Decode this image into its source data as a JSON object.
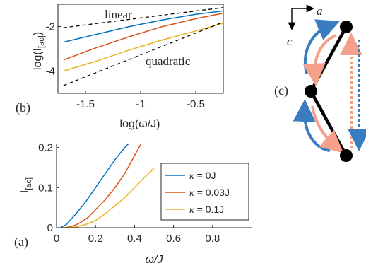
{
  "panels": {
    "b": {
      "label": "(b)",
      "annotations": {
        "linear": "linear",
        "quadratic": "quadratic"
      },
      "xlabel": "log(ω/J)",
      "ylabel": "log(I",
      "ylabel_sub": "[ac]",
      "ylabel_close": ")",
      "xticks": [
        {
          "value": -1.5,
          "label": "-1.5"
        },
        {
          "value": -1,
          "label": "-1"
        },
        {
          "value": -0.5,
          "label": "-0.5"
        }
      ],
      "yticks": [
        {
          "value": -2,
          "label": "-2"
        },
        {
          "value": -4,
          "label": "-4"
        }
      ]
    },
    "a": {
      "label": "(a)",
      "xlabel": "ω/J",
      "ylabel": "I",
      "ylabel_sub": "[ac]",
      "xticks": [
        {
          "value": 0,
          "label": "0"
        },
        {
          "value": 0.2,
          "label": "0.2"
        },
        {
          "value": 0.4,
          "label": "0.4"
        },
        {
          "value": 0.6,
          "label": "0.6"
        },
        {
          "value": 0.8,
          "label": "0.8"
        }
      ],
      "yticks": [
        {
          "value": 0,
          "label": "0"
        },
        {
          "value": 0.1,
          "label": "0.1"
        },
        {
          "value": 0.2,
          "label": "0.2"
        }
      ],
      "legend": [
        {
          "prefix": "κ",
          "text": " = 0J",
          "color": "#0072BD"
        },
        {
          "prefix": "κ",
          "text": " = 0.03J",
          "color": "#D95319"
        },
        {
          "prefix": "κ",
          "text": " = 0.1J",
          "color": "#EDB120"
        }
      ]
    },
    "c": {
      "label": "(c)",
      "axis_a": "a",
      "axis_c": "c"
    }
  },
  "colors": {
    "blue": "#0072BD",
    "orange": "#D95319",
    "yellow": "#EDB120",
    "salmon": "#F4A08A",
    "arrow_blue": "#3A7CC0"
  },
  "chart_data": [
    {
      "type": "line",
      "panel": "b",
      "xlabel": "log(ω/J)",
      "ylabel": "log(I[ac])",
      "xlim": [
        -1.75,
        -0.25
      ],
      "ylim": [
        -5,
        -1
      ],
      "grid": false,
      "series": [
        {
          "name": "κ = 0J",
          "color": "#0072BD",
          "x": [
            -1.7,
            -1.4,
            -1.1,
            -0.8,
            -0.5,
            -0.25
          ],
          "y": [
            -2.7,
            -2.35,
            -2.0,
            -1.7,
            -1.45,
            -1.3
          ]
        },
        {
          "name": "κ = 0.03J",
          "color": "#D95319",
          "x": [
            -1.7,
            -1.4,
            -1.1,
            -0.8,
            -0.5,
            -0.25
          ],
          "y": [
            -3.5,
            -2.95,
            -2.45,
            -2.0,
            -1.65,
            -1.4
          ]
        },
        {
          "name": "κ = 0.1J",
          "color": "#EDB120",
          "x": [
            -1.7,
            -1.4,
            -1.1,
            -0.8,
            -0.5,
            -0.25
          ],
          "y": [
            -4.0,
            -3.55,
            -3.05,
            -2.6,
            -2.2,
            -1.85
          ]
        },
        {
          "name": "linear",
          "color": "#000000",
          "dashed": true,
          "x": [
            -1.7,
            -0.25
          ],
          "y": [
            -2.05,
            -1.15
          ]
        },
        {
          "name": "quadratic",
          "color": "#000000",
          "dashed": true,
          "x": [
            -1.7,
            -0.25
          ],
          "y": [
            -4.65,
            -1.8
          ]
        }
      ]
    },
    {
      "type": "line",
      "panel": "a",
      "xlabel": "ω/J",
      "ylabel": "I[ac]",
      "xlim": [
        0,
        1
      ],
      "ylim": [
        0,
        0.21
      ],
      "grid": false,
      "legend": "right",
      "series": [
        {
          "name": "κ = 0J",
          "color": "#0072BD",
          "x": [
            0.02,
            0.05,
            0.1,
            0.15,
            0.2,
            0.25,
            0.3,
            0.35,
            0.38
          ],
          "y": [
            0,
            0.008,
            0.035,
            0.065,
            0.1,
            0.135,
            0.17,
            0.2,
            0.215
          ]
        },
        {
          "name": "κ = 0.03J",
          "color": "#D95319",
          "x": [
            0.04,
            0.08,
            0.12,
            0.16,
            0.2,
            0.25,
            0.3,
            0.35,
            0.4,
            0.44
          ],
          "y": [
            0,
            0.003,
            0.012,
            0.025,
            0.045,
            0.07,
            0.1,
            0.135,
            0.18,
            0.215
          ]
        },
        {
          "name": "κ = 0.1J",
          "color": "#EDB120",
          "x": [
            0.05,
            0.1,
            0.15,
            0.2,
            0.25,
            0.3,
            0.35,
            0.4,
            0.45,
            0.5
          ],
          "y": [
            0,
            0.002,
            0.008,
            0.018,
            0.035,
            0.055,
            0.075,
            0.1,
            0.125,
            0.148
          ]
        }
      ]
    }
  ]
}
